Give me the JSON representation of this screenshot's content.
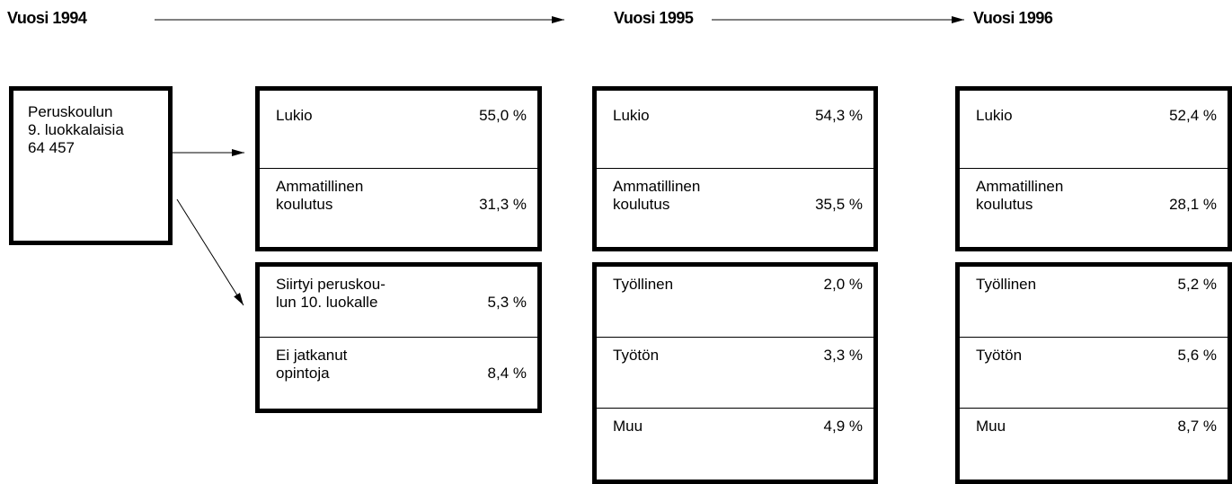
{
  "headers": [
    "Vuosi 1994",
    "Vuosi 1995",
    "Vuosi 1996"
  ],
  "start": {
    "lines": [
      "Peruskoulun",
      "9. luokkalaisia",
      "64 457"
    ]
  },
  "columns": [
    {
      "boxes": [
        {
          "items": [
            {
              "label": [
                "Lukio"
              ],
              "value": "55,0 %"
            },
            {
              "label": [
                "Ammatillinen",
                "koulutus"
              ],
              "value": "31,3 %"
            }
          ]
        },
        {
          "items": [
            {
              "label": [
                "Siirtyi peruskou-",
                "lun 10. luokalle"
              ],
              "value": "5,3 %"
            },
            {
              "label": [
                "Ei jatkanut",
                "opintoja"
              ],
              "value": "8,4 %"
            }
          ]
        }
      ]
    },
    {
      "boxes": [
        {
          "items": [
            {
              "label": [
                "Lukio"
              ],
              "value": "54,3 %"
            },
            {
              "label": [
                "Ammatillinen",
                "koulutus"
              ],
              "value": "35,5 %"
            }
          ]
        },
        {
          "items": [
            {
              "label": [
                "Työllinen"
              ],
              "value": "2,0 %"
            },
            {
              "label": [
                "Työtön"
              ],
              "value": "3,3 %"
            },
            {
              "label": [
                "Muu"
              ],
              "value": "4,9 %"
            }
          ]
        }
      ]
    },
    {
      "boxes": [
        {
          "items": [
            {
              "label": [
                "Lukio"
              ],
              "value": "52,4 %"
            },
            {
              "label": [
                "Ammatillinen",
                "koulutus"
              ],
              "value": "28,1 %"
            }
          ]
        },
        {
          "items": [
            {
              "label": [
                "Työllinen"
              ],
              "value": "5,2 %"
            },
            {
              "label": [
                "Työtön"
              ],
              "value": "5,6 %"
            },
            {
              "label": [
                "Muu"
              ],
              "value": "8,7 %"
            }
          ]
        }
      ]
    }
  ]
}
